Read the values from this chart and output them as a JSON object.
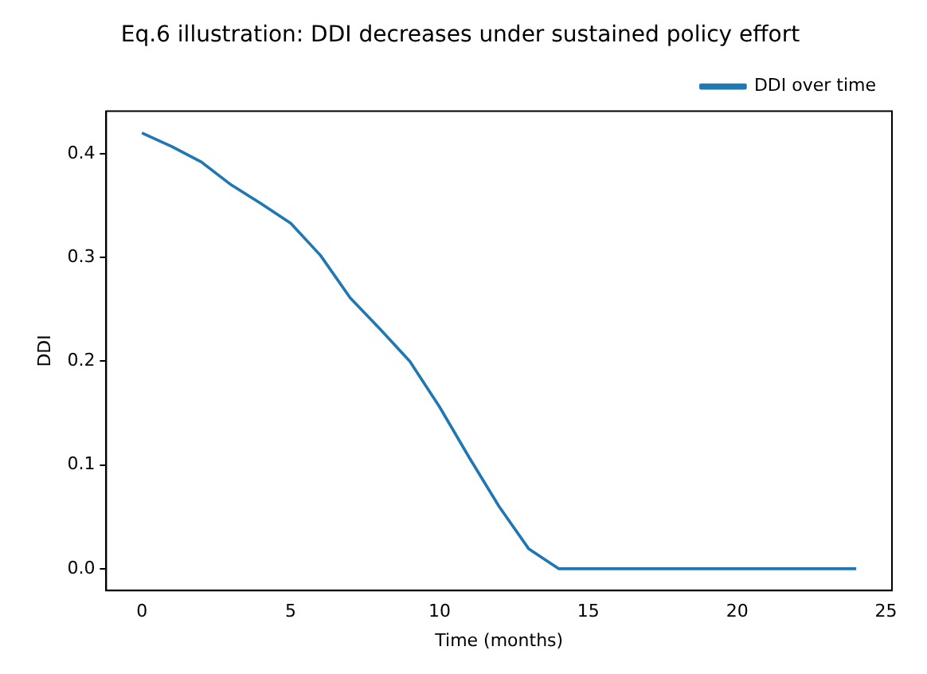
{
  "chart_data": {
    "type": "line",
    "title": "Eq.6 illustration: DDI decreases under sustained policy effort",
    "xlabel": "Time (months)",
    "ylabel": "DDI",
    "x": [
      0,
      1,
      2,
      3,
      4,
      5,
      6,
      7,
      8,
      9,
      10,
      11,
      12,
      13,
      14,
      15,
      16,
      17,
      18,
      19,
      20,
      21,
      22,
      23,
      24
    ],
    "series": [
      {
        "name": "DDI over time",
        "color": "#1f77b4",
        "values": [
          0.42,
          0.407,
          0.392,
          0.37,
          0.352,
          0.333,
          0.302,
          0.261,
          0.231,
          0.2,
          0.156,
          0.107,
          0.06,
          0.019,
          0,
          0,
          0,
          0,
          0,
          0,
          0,
          0,
          0,
          0,
          0
        ]
      }
    ],
    "xlim": [
      -1.2,
      25.2
    ],
    "xticks": [
      0,
      5,
      10,
      15,
      20,
      25
    ],
    "ylim": [
      -0.021,
      0.441
    ],
    "yticks": [
      {
        "value": 0,
        "label": "0.0"
      },
      0.1,
      0.2,
      0.3,
      0.4
    ],
    "legend": "top right",
    "grid": false,
    "marker": "none",
    "line_style": "solid"
  }
}
